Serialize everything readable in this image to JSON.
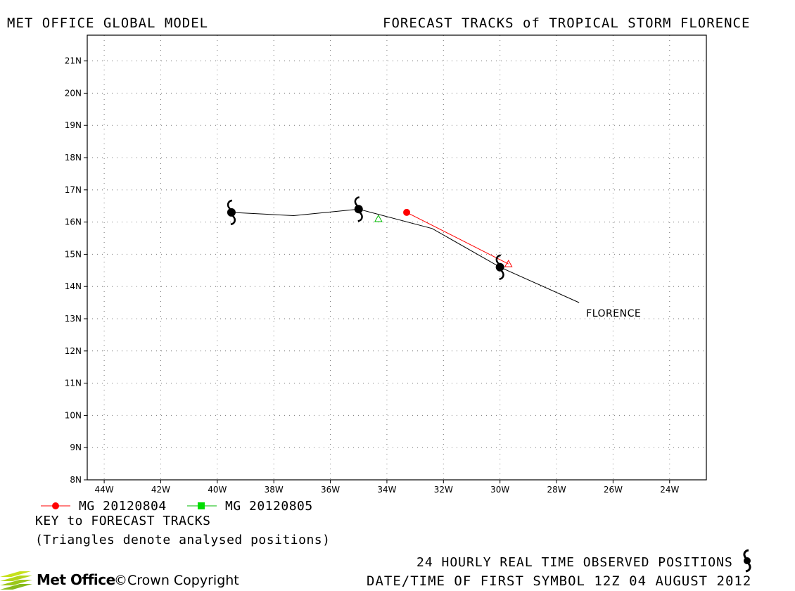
{
  "header": {
    "left": "MET OFFICE GLOBAL MODEL",
    "right": "FORECAST TRACKS of TROPICAL STORM FLORENCE"
  },
  "map": {
    "lon_ticks": [
      "44W",
      "42W",
      "40W",
      "38W",
      "36W",
      "34W",
      "32W",
      "30W",
      "28W",
      "26W",
      "24W"
    ],
    "lat_ticks": [
      "8N",
      "9N",
      "10N",
      "11N",
      "12N",
      "13N",
      "14N",
      "15N",
      "16N",
      "17N",
      "18N",
      "19N",
      "20N",
      "21N"
    ],
    "lon_range": [
      -44.6,
      -22.7
    ],
    "lat_range": [
      8,
      21.8
    ],
    "grid": "dotted",
    "storm_label": "FLORENCE",
    "observed_track": [
      {
        "lon": -39.5,
        "lat": 16.3
      },
      {
        "lon": -37.3,
        "lat": 16.2
      },
      {
        "lon": -35.0,
        "lat": 16.4
      },
      {
        "lon": -32.4,
        "lat": 15.8
      },
      {
        "lon": -30.0,
        "lat": 14.6
      },
      {
        "lon": -27.2,
        "lat": 13.5
      }
    ],
    "observed_symbols": [
      {
        "lon": -39.5,
        "lat": 16.3
      },
      {
        "lon": -35.0,
        "lat": 16.4
      },
      {
        "lon": -30.0,
        "lat": 14.6
      }
    ],
    "forecast_tracks": [
      {
        "name": "MG 20120804",
        "color": "#ff0000",
        "marker": "circle",
        "points": [
          {
            "lon": -33.3,
            "lat": 16.3
          },
          {
            "lon": -29.7,
            "lat": 14.7
          }
        ],
        "analysed": {
          "lon": -29.7,
          "lat": 14.7
        }
      },
      {
        "name": "MG 20120805",
        "color": "#00aa00",
        "marker": "square",
        "points": [],
        "analysed": {
          "lon": -34.3,
          "lat": 16.1
        }
      }
    ]
  },
  "legend": {
    "entries": [
      {
        "label": "MG 20120804",
        "color": "#ff0000",
        "marker": "circle"
      },
      {
        "label": "MG 20120805",
        "color": "#00aa00",
        "marker": "square"
      }
    ],
    "key_title": "KEY to FORECAST TRACKS",
    "key_note": "(Triangles denote analysed positions)"
  },
  "footer": {
    "observed": "24 HOURLY REAL TIME OBSERVED POSITIONS",
    "date": "DATE/TIME OF FIRST SYMBOL 12Z 04 AUGUST 2012",
    "logo": "Met Office",
    "copyright": "Crown Copyright"
  }
}
